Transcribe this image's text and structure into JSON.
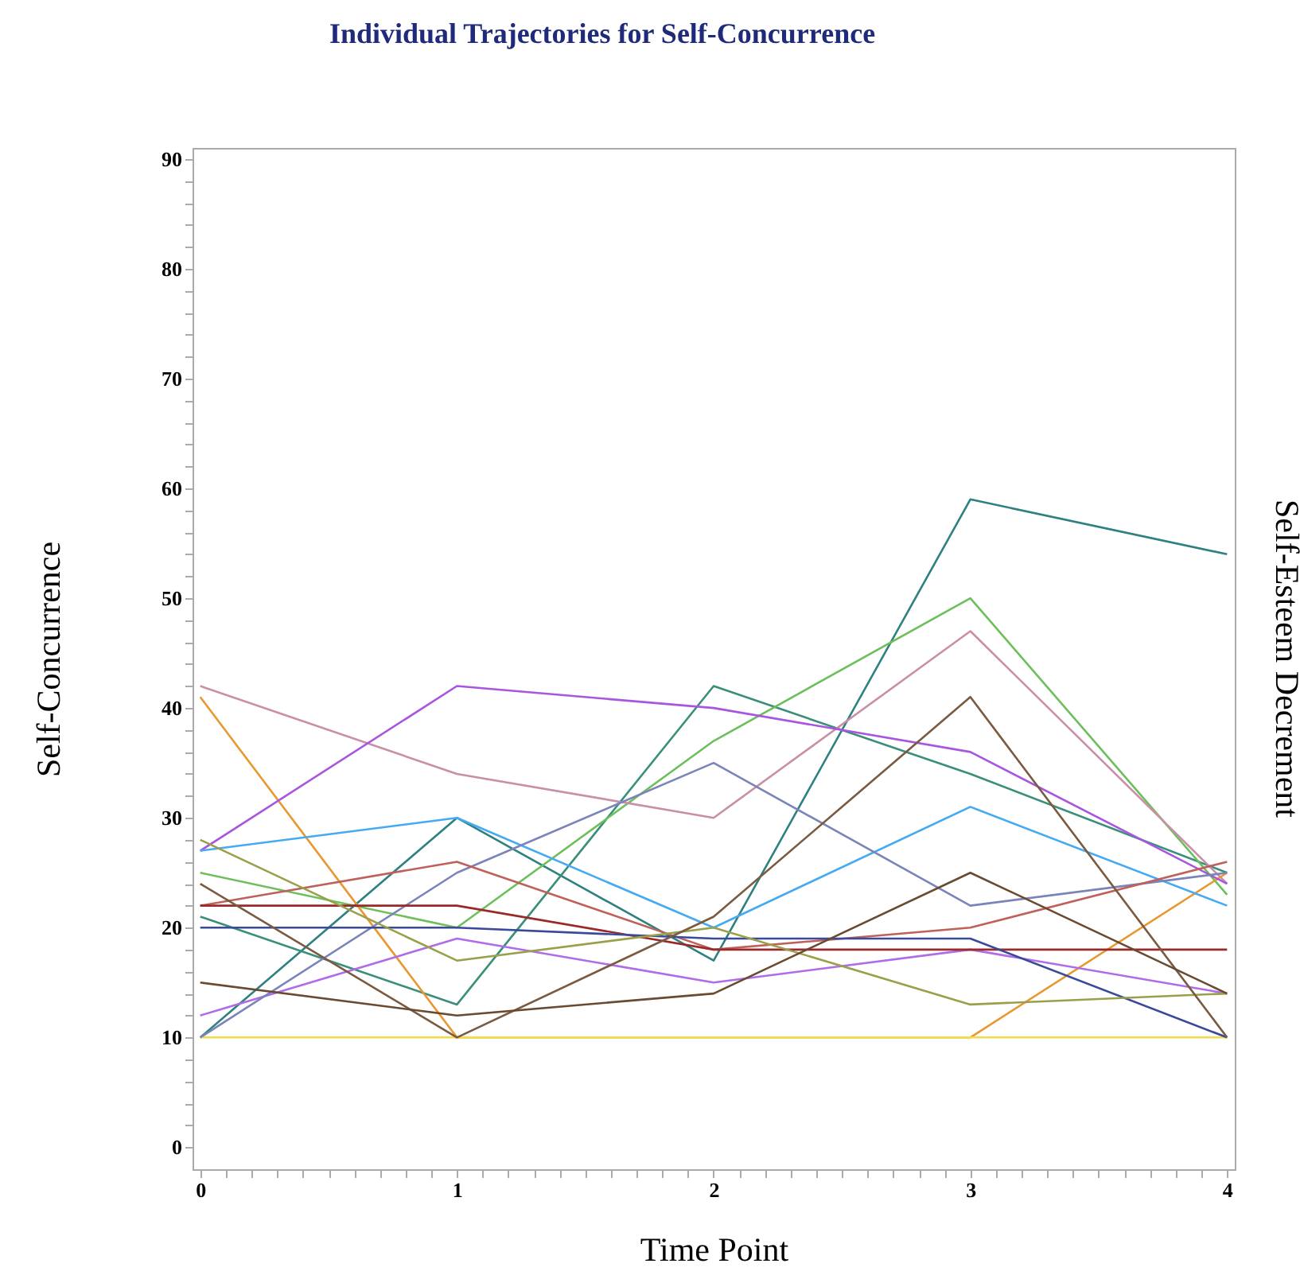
{
  "chart_data": {
    "type": "line",
    "title": "Individual Trajectories for Self-Concurrence",
    "xlabel": "Time Point",
    "ylabel": "Self-Concurrence",
    "y2label": "Self-Esteem Decrement",
    "x": [
      0,
      1,
      2,
      3,
      4
    ],
    "series": [
      {
        "color": "#2f8080",
        "values": [
          10,
          30,
          17,
          59,
          54
        ]
      },
      {
        "color": "#3a8f7a",
        "values": [
          21,
          13,
          42,
          34,
          25
        ]
      },
      {
        "color": "#6cbf5a",
        "values": [
          25,
          20,
          37,
          50,
          23
        ]
      },
      {
        "color": "#c98fa8",
        "values": [
          42,
          34,
          30,
          47,
          24
        ]
      },
      {
        "color": "#e8982e",
        "values": [
          41,
          10,
          10,
          10,
          25
        ]
      },
      {
        "color": "#f2dc4a",
        "values": [
          10,
          10,
          10,
          10,
          10
        ]
      },
      {
        "color": "#a855e0",
        "values": [
          27,
          42,
          40,
          36,
          24
        ]
      },
      {
        "color": "#b06be8",
        "values": [
          12,
          19,
          15,
          18,
          14
        ]
      },
      {
        "color": "#45aaf2",
        "values": [
          27,
          30,
          20,
          31,
          22
        ]
      },
      {
        "color": "#7b84b8",
        "values": [
          10,
          25,
          35,
          22,
          25
        ]
      },
      {
        "color": "#c0605a",
        "values": [
          22,
          26,
          18,
          20,
          26
        ]
      },
      {
        "color": "#9a2a2a",
        "values": [
          22,
          22,
          18,
          18,
          18
        ]
      },
      {
        "color": "#3a4a9a",
        "values": [
          20,
          20,
          19,
          19,
          10
        ]
      },
      {
        "color": "#9aa04a",
        "values": [
          28,
          17,
          20,
          13,
          14
        ]
      },
      {
        "color": "#7a5a40",
        "values": [
          24,
          10,
          21,
          41,
          10
        ]
      },
      {
        "color": "#6a4a30",
        "values": [
          15,
          12,
          14,
          25,
          14
        ]
      }
    ],
    "xlim": [
      -0.03,
      4.03
    ],
    "xticks": [
      0,
      {
        "value": 0.1,
        "label": null
      },
      {
        "value": 0.2,
        "label": null
      },
      {
        "value": 0.3,
        "label": null
      },
      {
        "value": 0.4,
        "label": null
      },
      {
        "value": 0.5,
        "label": null
      },
      {
        "value": 0.6,
        "label": null
      },
      {
        "value": 0.7,
        "label": null
      },
      {
        "value": 0.8,
        "label": null
      },
      {
        "value": 0.9,
        "label": null
      },
      1,
      {
        "value": 1.1,
        "label": null
      },
      {
        "value": 1.2,
        "label": null
      },
      {
        "value": 1.3,
        "label": null
      },
      {
        "value": 1.4,
        "label": null
      },
      {
        "value": 1.5,
        "label": null
      },
      {
        "value": 1.6,
        "label": null
      },
      {
        "value": 1.7,
        "label": null
      },
      {
        "value": 1.8,
        "label": null
      },
      {
        "value": 1.9,
        "label": null
      },
      2,
      {
        "value": 2.1,
        "label": null
      },
      {
        "value": 2.2,
        "label": null
      },
      {
        "value": 2.3,
        "label": null
      },
      {
        "value": 2.4,
        "label": null
      },
      {
        "value": 2.5,
        "label": null
      },
      {
        "value": 2.6,
        "label": null
      },
      {
        "value": 2.7,
        "label": null
      },
      {
        "value": 2.8,
        "label": null
      },
      {
        "value": 2.9,
        "label": null
      },
      3,
      {
        "value": 3.1,
        "label": null
      },
      {
        "value": 3.2,
        "label": null
      },
      {
        "value": 3.3,
        "label": null
      },
      {
        "value": 3.4,
        "label": null
      },
      {
        "value": 3.5,
        "label": null
      },
      {
        "value": 3.6,
        "label": null
      },
      {
        "value": 3.7,
        "label": null
      },
      {
        "value": 3.8,
        "label": null
      },
      {
        "value": 3.9,
        "label": null
      },
      4
    ],
    "ylim": [
      -2,
      91
    ],
    "yticks": [
      0,
      {
        "value": 2,
        "label": null
      },
      {
        "value": 4,
        "label": null
      },
      {
        "value": 6,
        "label": null
      },
      {
        "value": 8,
        "label": null
      },
      10,
      {
        "value": 12,
        "label": null
      },
      {
        "value": 14,
        "label": null
      },
      {
        "value": 16,
        "label": null
      },
      {
        "value": 18,
        "label": null
      },
      20,
      {
        "value": 22,
        "label": null
      },
      {
        "value": 24,
        "label": null
      },
      {
        "value": 26,
        "label": null
      },
      {
        "value": 28,
        "label": null
      },
      30,
      {
        "value": 32,
        "label": null
      },
      {
        "value": 34,
        "label": null
      },
      {
        "value": 36,
        "label": null
      },
      {
        "value": 38,
        "label": null
      },
      40,
      {
        "value": 42,
        "label": null
      },
      {
        "value": 44,
        "label": null
      },
      {
        "value": 46,
        "label": null
      },
      {
        "value": 48,
        "label": null
      },
      50,
      {
        "value": 52,
        "label": null
      },
      {
        "value": 54,
        "label": null
      },
      {
        "value": 56,
        "label": null
      },
      {
        "value": 58,
        "label": null
      },
      60,
      {
        "value": 62,
        "label": null
      },
      {
        "value": 64,
        "label": null
      },
      {
        "value": 66,
        "label": null
      },
      {
        "value": 68,
        "label": null
      },
      70,
      {
        "value": 72,
        "label": null
      },
      {
        "value": 74,
        "label": null
      },
      {
        "value": 76,
        "label": null
      },
      {
        "value": 78,
        "label": null
      },
      80,
      {
        "value": 82,
        "label": null
      },
      {
        "value": 84,
        "label": null
      },
      {
        "value": 86,
        "label": null
      },
      {
        "value": 88,
        "label": null
      },
      90
    ],
    "grid": false,
    "legend": false,
    "marker": "none",
    "line_style": "solid"
  }
}
